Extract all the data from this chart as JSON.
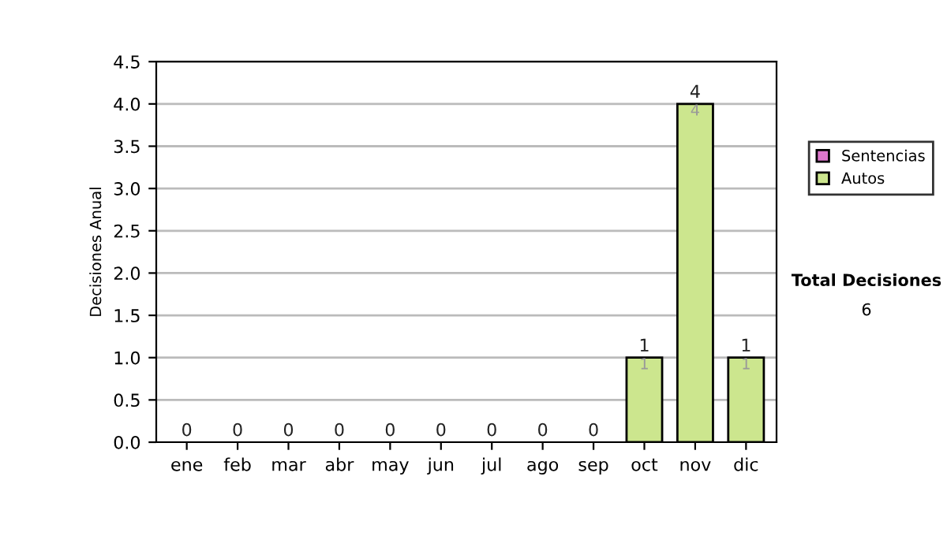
{
  "chart_data": {
    "type": "bar",
    "stacked": true,
    "ylabel": "Decisiones Anual",
    "categories": [
      "ene",
      "feb",
      "mar",
      "abr",
      "may",
      "jun",
      "jul",
      "ago",
      "sep",
      "oct",
      "nov",
      "dic"
    ],
    "series": [
      {
        "name": "Sentencias",
        "color": "#dd77cc",
        "values": [
          0,
          0,
          0,
          0,
          0,
          0,
          0,
          0,
          0,
          0,
          0,
          0
        ]
      },
      {
        "name": "Autos",
        "color": "#cce68e",
        "values": [
          0,
          0,
          0,
          0,
          0,
          0,
          0,
          0,
          0,
          1,
          4,
          1
        ],
        "value_labels": [
          null,
          null,
          null,
          null,
          null,
          null,
          null,
          null,
          null,
          "1",
          "4",
          "1"
        ]
      }
    ],
    "totals": [
      "0",
      "0",
      "0",
      "0",
      "0",
      "0",
      "0",
      "0",
      "0",
      "1",
      "4",
      "1"
    ],
    "ylim": [
      0,
      4.5
    ],
    "yticks": [
      {
        "value": 0,
        "label": "0.0"
      },
      {
        "value": 0.5,
        "label": "0.5"
      },
      {
        "value": 1,
        "label": "1.0"
      },
      {
        "value": 1.5,
        "label": "1.5"
      },
      {
        "value": 2,
        "label": "2.0"
      },
      {
        "value": 2.5,
        "label": "2.5"
      },
      {
        "value": 3,
        "label": "3.0"
      },
      {
        "value": 3.5,
        "label": "3.5"
      },
      {
        "value": 4,
        "label": "4.0"
      },
      {
        "value": 4.5,
        "label": "4.5"
      }
    ],
    "grid": "y",
    "legend": "right",
    "annotations": [
      "Total Decisiones",
      "6"
    ]
  }
}
